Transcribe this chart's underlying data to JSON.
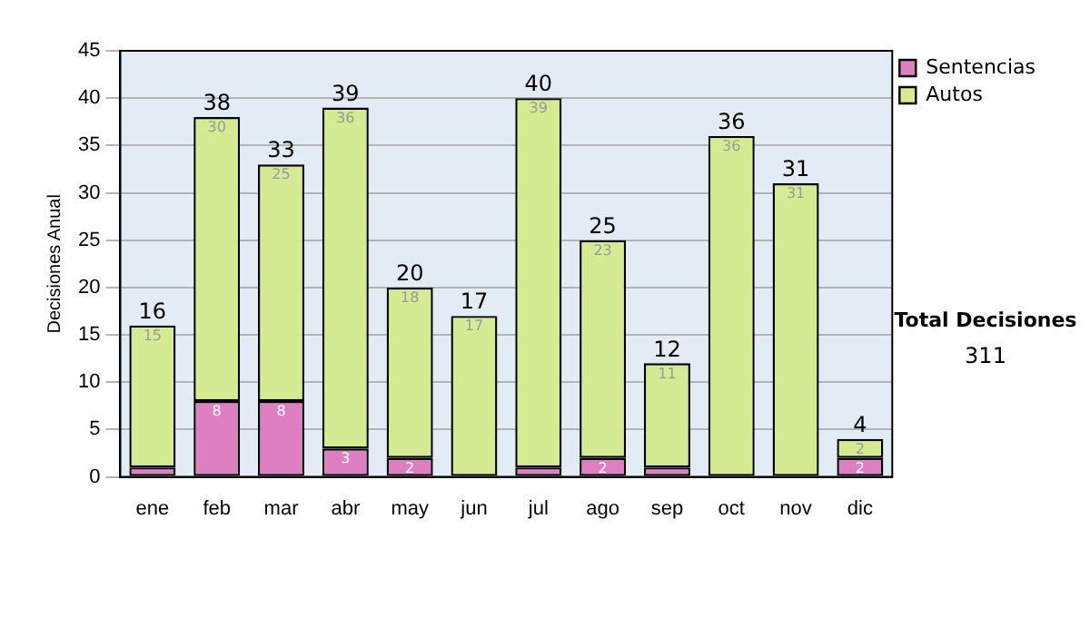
{
  "chart_data": {
    "type": "bar",
    "ylabel": "Decisiones Anual",
    "categories": [
      "ene",
      "feb",
      "mar",
      "abr",
      "may",
      "jun",
      "jul",
      "ago",
      "sep",
      "oct",
      "nov",
      "dic"
    ],
    "series": [
      {
        "name": "Sentencias",
        "color": "#de7fc2",
        "values": [
          1,
          8,
          8,
          3,
          2,
          0,
          1,
          2,
          1,
          0,
          0,
          2
        ],
        "value_labels": [
          null,
          "8",
          "8",
          "3",
          "2",
          null,
          null,
          "2",
          null,
          null,
          null,
          "2"
        ]
      },
      {
        "name": "Autos",
        "color": "#d4eb94",
        "values": [
          15,
          30,
          25,
          36,
          18,
          17,
          39,
          23,
          11,
          36,
          31,
          2
        ],
        "value_labels": [
          "15",
          "30",
          "25",
          "36",
          "18",
          "17",
          "39",
          "23",
          "11",
          "36",
          "31",
          "2"
        ]
      }
    ],
    "stacked": true,
    "totals": [
      "16",
      "38",
      "33",
      "39",
      "20",
      "17",
      "40",
      "25",
      "12",
      "36",
      "31",
      "4"
    ],
    "ylim": [
      0,
      45
    ],
    "yticks": [
      0,
      5,
      10,
      15,
      20,
      25,
      30,
      35,
      40,
      45
    ],
    "grid": "y",
    "legend": "right",
    "annotations": [
      "Total Decisiones",
      "311"
    ]
  }
}
